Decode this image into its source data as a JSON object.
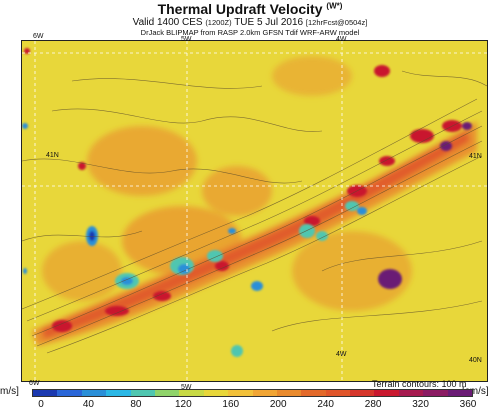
{
  "header": {
    "title": "Thermal Updraft Velocity",
    "title_sup": "(W*)",
    "valid_line": "Valid 1400 CES",
    "valid_small_1": "(1200Z)",
    "valid_day": "TUE 5 Jul 2016",
    "valid_small_2": "[12hrFcst@0504z]",
    "credit": "DrJack BLIPMAP from RASP 2.0km GFSN Tdif WRF-ARW model"
  },
  "map": {
    "labels": {
      "lon_6w_top": "6W",
      "lon_5w_top": "5W",
      "lon_4w_top": "4W",
      "lat_41n_left": "41N",
      "lat_41n_right": "41N",
      "lon_4w_bottom": "4W",
      "lat_40n_right": "40N",
      "lon_6w_bottom": "6W",
      "lon_5w_bottom": "5W"
    },
    "colors": {
      "background": "#e8d73a",
      "ridge": "#e98a2d",
      "ridge_core": "#e0552a",
      "peak": "#c9182f",
      "extreme": "#6a1b75",
      "low": "#2a8fd8",
      "low_core": "#1b39b0",
      "teal": "#4fc6b0",
      "contour": "#5a4a2a",
      "grid": "#ffffff"
    }
  },
  "legend": {
    "unit_left": "m/s]",
    "unit_right": "[cm/s]",
    "terrain_note": "Terrain contours: 100 m",
    "ticks": [
      "0",
      "40",
      "80",
      "120",
      "160",
      "200",
      "240",
      "280",
      "320",
      "360"
    ],
    "colors": [
      "#1b39b0",
      "#2a66d8",
      "#2a8fd8",
      "#2bb7e5",
      "#4fc6b0",
      "#8fd36a",
      "#c8da45",
      "#e8d73a",
      "#f2c13a",
      "#f1a534",
      "#e98a2d",
      "#e3692a",
      "#e0552a",
      "#d5362b",
      "#c9182f",
      "#a61a4f",
      "#8b1b63",
      "#6a1b75"
    ]
  }
}
